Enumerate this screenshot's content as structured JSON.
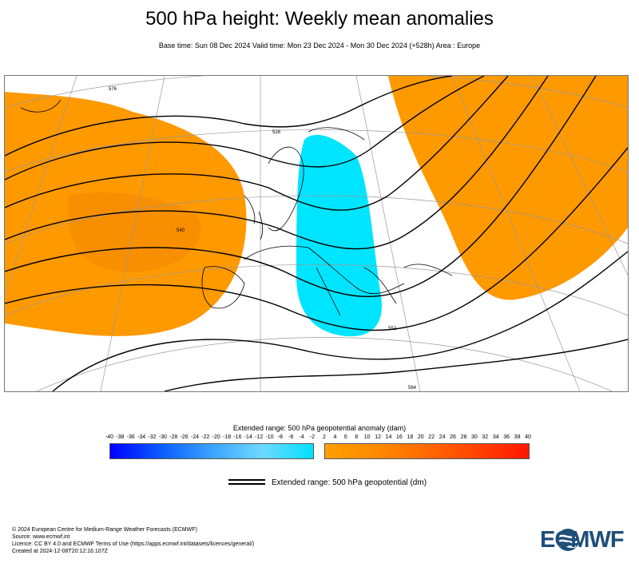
{
  "header": {
    "title": "500 hPa height: Weekly mean anomalies",
    "subtitle": "Base time: Sun 08 Dec 2024 Valid time: Mon 23 Dec 2024 - Mon 30 Dec 2024 (+528h) Area : Europe"
  },
  "map": {
    "contour_labels": [
      "576",
      "528",
      "540",
      "552",
      "564",
      "576",
      "564"
    ],
    "colors": {
      "positive_anomaly": "#ff9900",
      "negative_anomaly": "#00e5ff",
      "contour": "#000000",
      "grid": "#9a9a9a",
      "coast": "#000000"
    }
  },
  "colorbar": {
    "title": "Extended range: 500 hPa geopotential anomaly (dam)",
    "negative_ticks": [
      "-40",
      "-38",
      "-36",
      "-34",
      "-32",
      "-30",
      "-28",
      "-26",
      "-24",
      "-22",
      "-20",
      "-18",
      "-16",
      "-14",
      "-12",
      "-10",
      "-8",
      "-6",
      "-4",
      "-2"
    ],
    "positive_ticks": [
      "2",
      "4",
      "6",
      "8",
      "10",
      "12",
      "14",
      "16",
      "18",
      "20",
      "22",
      "24",
      "26",
      "28",
      "30",
      "32",
      "34",
      "36",
      "38",
      "40"
    ]
  },
  "legend": {
    "label": "Extended range: 500 hPa geopotential (dm)"
  },
  "footer": {
    "lines": [
      "© 2024 European Centre for Medium-Range Weather Forecasts (ECMWF)",
      "Source: www.ecmwf.int",
      "Licence: CC BY 4.0 and ECMWF Terms of Use (https://apps.ecmwf.int/datasets/licences/general/)",
      "Created at 2024-12-08T20:12:16.107Z"
    ]
  },
  "logo": {
    "text": "ECMWF",
    "color": "#1f4e79"
  }
}
